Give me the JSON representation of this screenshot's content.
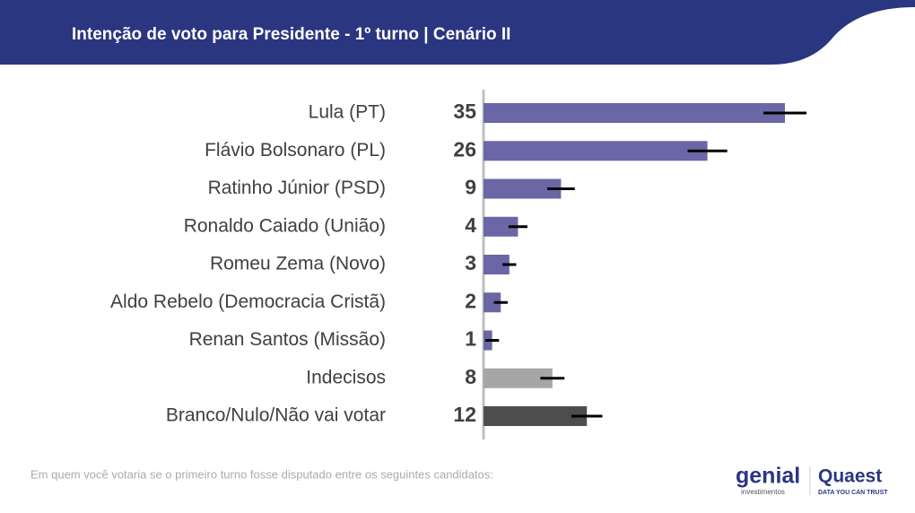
{
  "chart_data": {
    "type": "bar",
    "orientation": "horizontal",
    "title": "Intenção de voto para Presidente - 1º turno | Cenário II",
    "categories": [
      "Lula (PT)",
      "Flávio Bolsonaro (PL)",
      "Ratinho Júnior (PSD)",
      "Ronaldo Caiado (União)",
      "Romeu Zema (Novo)",
      "Aldo Rebelo (Democracia Cristã)",
      "Renan Santos (Missão)",
      "Indecisos",
      "Branco/Nulo/Não vai votar"
    ],
    "values": [
      35,
      26,
      9,
      4,
      3,
      2,
      1,
      8,
      12
    ],
    "errors": [
      2.5,
      2.3,
      1.6,
      1.1,
      0.8,
      0.8,
      0.8,
      1.4,
      1.8
    ],
    "colors": [
      "#6b66a5",
      "#6b66a5",
      "#6b66a5",
      "#6b66a5",
      "#6b66a5",
      "#6b66a5",
      "#6b66a5",
      "#a6a6a6",
      "#4d4d4d"
    ],
    "xlim": [
      0,
      40
    ],
    "footnote": "Em quem você votaria se o primeiro turno fosse disputado entre os seguintes candidatos:",
    "logos": {
      "genial": "genial",
      "genial_sub": "investimentos",
      "quaest": "Quaest",
      "quaest_sub": "DATA YOU CAN TRUST"
    }
  }
}
